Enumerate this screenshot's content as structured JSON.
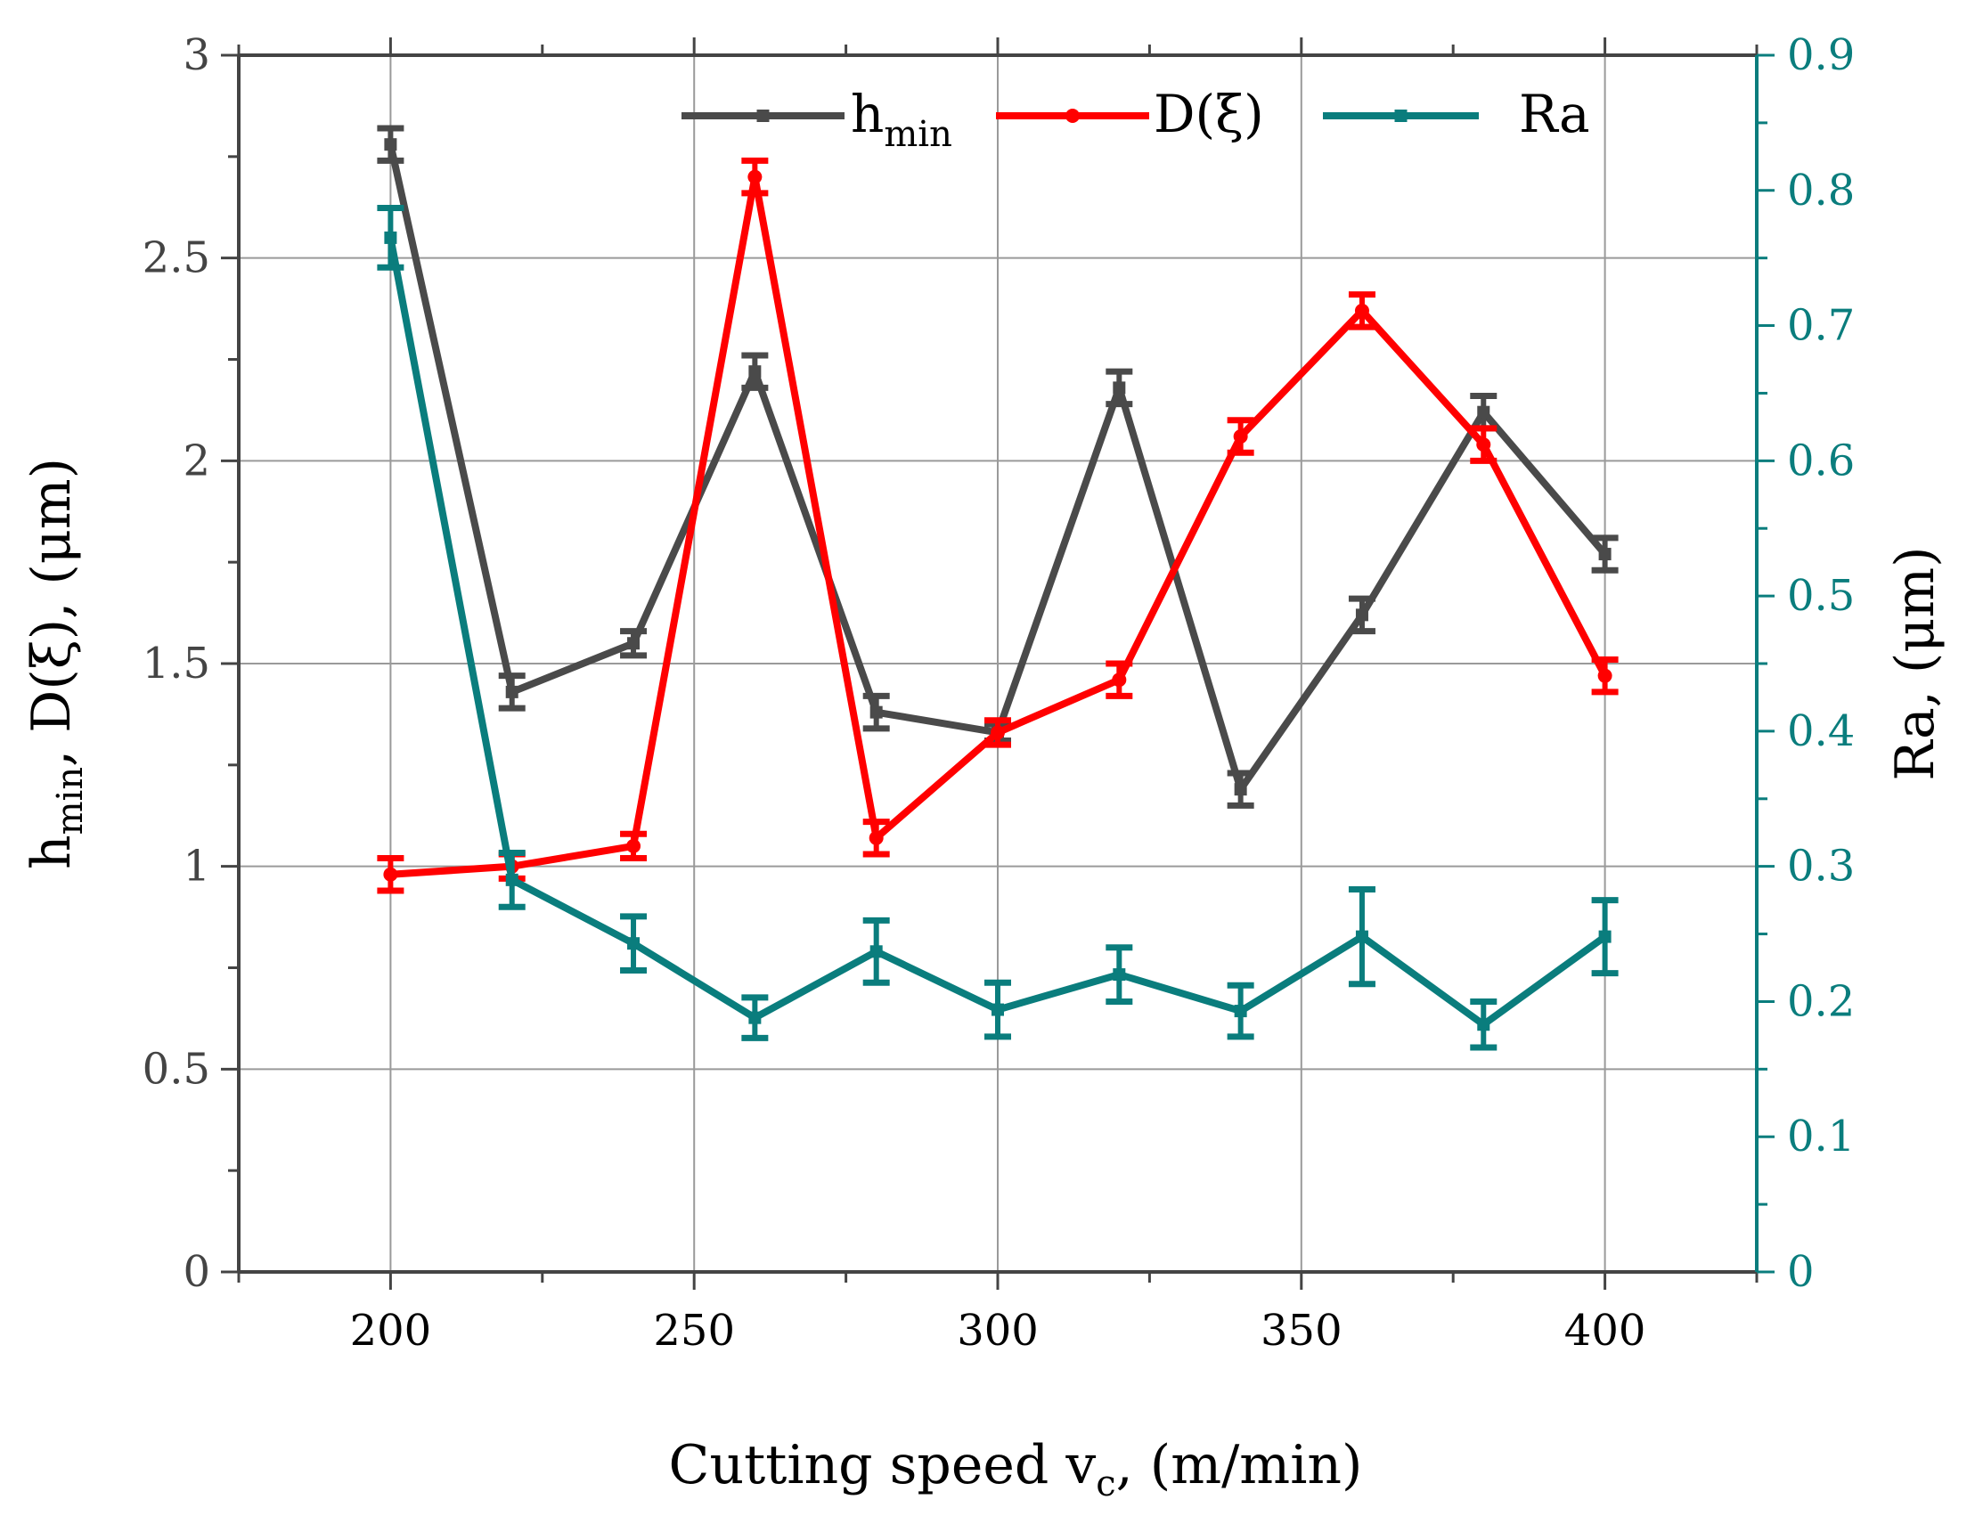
{
  "chart_data": {
    "type": "line",
    "x": [
      200,
      220,
      240,
      260,
      280,
      300,
      320,
      340,
      360,
      380,
      400
    ],
    "xlim": [
      175,
      425
    ],
    "xticks": [
      200,
      250,
      300,
      350,
      400
    ],
    "xlabel": {
      "main": "Cutting speed v",
      "sub": "c",
      "suffix": ", (m/min)"
    },
    "ylabel_left": {
      "main": "h",
      "sub": "min",
      "suffix": ", D(ξ), (μm)"
    },
    "ylabel_right": "Ra, (μm)",
    "ylim_left": [
      0,
      3
    ],
    "yticks_left": [
      0,
      0.5,
      1,
      1.5,
      2,
      2.5,
      3
    ],
    "ylim_right": [
      0,
      0.9
    ],
    "yticks_right": [
      0,
      0.1,
      0.2,
      0.3,
      0.4,
      0.5,
      0.6,
      0.7,
      0.8,
      0.9
    ],
    "grid": true,
    "legend_position": "top",
    "series": [
      {
        "name": "h",
        "name_sub": "min",
        "axis": "left",
        "color": "#4a4a4a",
        "marker": "square",
        "values": [
          2.78,
          1.43,
          1.55,
          2.22,
          1.38,
          1.33,
          2.18,
          1.19,
          1.62,
          2.12,
          1.77
        ],
        "errors": [
          0.04,
          0.04,
          0.03,
          0.04,
          0.04,
          0.02,
          0.04,
          0.04,
          0.04,
          0.04,
          0.04
        ]
      },
      {
        "name": "D(ξ)",
        "name_sub": "",
        "axis": "left",
        "color": "#ff0000",
        "marker": "circle",
        "values": [
          0.98,
          1.0,
          1.05,
          2.7,
          1.07,
          1.33,
          1.46,
          2.06,
          2.37,
          2.04,
          1.47
        ],
        "errors": [
          0.04,
          0.03,
          0.03,
          0.04,
          0.04,
          0.03,
          0.04,
          0.04,
          0.04,
          0.04,
          0.04
        ]
      },
      {
        "name": "Ra",
        "name_sub": "",
        "axis": "right",
        "color": "#0a7d7d",
        "marker": "square",
        "values": [
          0.765,
          0.29,
          0.243,
          0.188,
          0.237,
          0.194,
          0.22,
          0.193,
          0.248,
          0.183,
          0.248
        ],
        "errors": [
          0.022,
          0.02,
          0.02,
          0.015,
          0.023,
          0.02,
          0.02,
          0.019,
          0.035,
          0.017,
          0.027
        ]
      }
    ]
  }
}
